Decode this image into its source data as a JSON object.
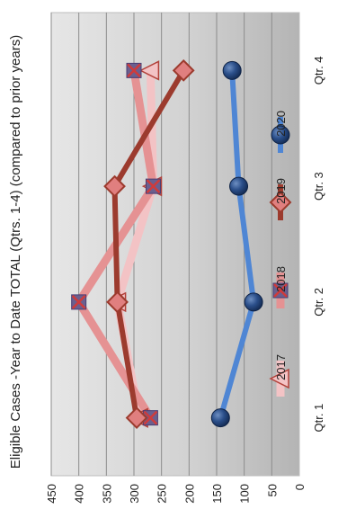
{
  "chart_data": {
    "type": "line",
    "title": "Eligible Cases -Year to Date TOTAL (Qtrs. 1-4) (compared to prior years)",
    "categories": [
      "Qtr. 1",
      "Qtr. 2",
      "Qtr. 3",
      "Qtr. 4"
    ],
    "value_ticks": [
      "0",
      "50",
      "100",
      "150",
      "200",
      "250",
      "300",
      "350",
      "400",
      "450"
    ],
    "ylim": [
      0,
      450
    ],
    "orientation": "rotated-90-clockwise",
    "grid": true,
    "legend_position": "right",
    "series": [
      {
        "name": "2017",
        "values": [
          290,
          330,
          265,
          270
        ],
        "color": "#f3c3c5",
        "marker": "triangle"
      },
      {
        "name": "2018",
        "values": [
          270,
          400,
          265,
          300
        ],
        "color": "#e59293",
        "marker": "square-x"
      },
      {
        "name": "2019",
        "values": [
          295,
          330,
          335,
          210
        ],
        "color": "#9c3b2e",
        "marker": "diamond"
      },
      {
        "name": "2020",
        "values": [
          143,
          83,
          110,
          122
        ],
        "color": "#4f86d4",
        "marker": "circle"
      }
    ]
  }
}
